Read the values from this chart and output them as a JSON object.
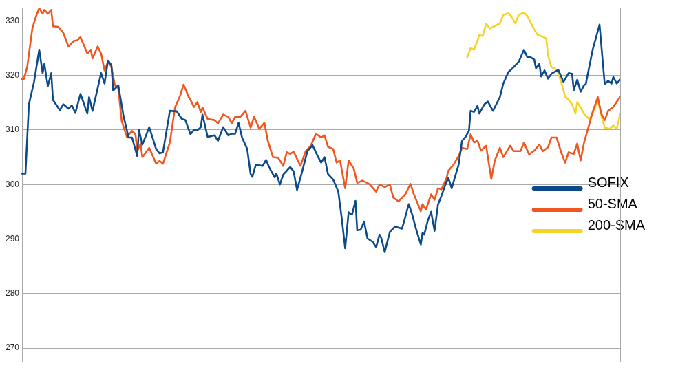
{
  "chart_data": {
    "type": "line",
    "ylim": [
      267.4,
      332.4
    ],
    "yticks": [
      270,
      280,
      290,
      300,
      310,
      320,
      330
    ],
    "tick_labels": "y",
    "grid": "y",
    "legend": "right",
    "marker": "none",
    "line_style": "solid",
    "categories": [
      null,
      null,
      null,
      null,
      null,
      null,
      null,
      null,
      null,
      null,
      null,
      null,
      null,
      null,
      null,
      null,
      null,
      null,
      null,
      null,
      null,
      null,
      null,
      null,
      null,
      null,
      null,
      null,
      null,
      null,
      null,
      null,
      null,
      null,
      null,
      null,
      null,
      null,
      null,
      null,
      null,
      null,
      null,
      null,
      null,
      null,
      null,
      null,
      null,
      null,
      null,
      null,
      null,
      null,
      null,
      null,
      null,
      null,
      null,
      null,
      null,
      null,
      null,
      null,
      null,
      null,
      null,
      null,
      null,
      null,
      null,
      null,
      null,
      null,
      null,
      null,
      null,
      null,
      null,
      null,
      null,
      null,
      null,
      null,
      null,
      null,
      null,
      null,
      null,
      null,
      null,
      null,
      null,
      null,
      null,
      null,
      null,
      null,
      null,
      null,
      null,
      null,
      null,
      null,
      null,
      null,
      null,
      null,
      null,
      null,
      null,
      null,
      null,
      null,
      null,
      null,
      null,
      null,
      null,
      null,
      null,
      null,
      null,
      null,
      null,
      null,
      null,
      null,
      null,
      null,
      null,
      null,
      null,
      null,
      null,
      null,
      null,
      null,
      null,
      null,
      null,
      null,
      null,
      null,
      null,
      null,
      null,
      null,
      null,
      null,
      null,
      null,
      null,
      null,
      null,
      null,
      null,
      null,
      null,
      null,
      null,
      null,
      null,
      null,
      null,
      null,
      null,
      null,
      null,
      null,
      null,
      null,
      null,
      null,
      null,
      null,
      null,
      null,
      null,
      null,
      null,
      null,
      null,
      null,
      null,
      null,
      null,
      null,
      null,
      null,
      null,
      null,
      null,
      null,
      null,
      null,
      null,
      null,
      null,
      null,
      null,
      null,
      null,
      null,
      null,
      null,
      null,
      null,
      null,
      null,
      null,
      null,
      null,
      null,
      null,
      null,
      null,
      null,
      null,
      null,
      null,
      null,
      null,
      null,
      null,
      null,
      null,
      null,
      null,
      null,
      null,
      null,
      null,
      null,
      null,
      null,
      null,
      null,
      null,
      null,
      null,
      null,
      null,
      null,
      null,
      null,
      null,
      null,
      null,
      null,
      null,
      null,
      null,
      null,
      null,
      null,
      null,
      null,
      null,
      null,
      null,
      null,
      null,
      null,
      null,
      null,
      null,
      null,
      null,
      null,
      null,
      null,
      null,
      null,
      null,
      null,
      null,
      null,
      null,
      null,
      null,
      null,
      null,
      null,
      null,
      null,
      null,
      null,
      null,
      null,
      null,
      null,
      null,
      null,
      null,
      null,
      null,
      null,
      null,
      null,
      null,
      null,
      null,
      null,
      null,
      null,
      null,
      null,
      null,
      null,
      null,
      null,
      null,
      null,
      null,
      null,
      null,
      null,
      null,
      null,
      null,
      null,
      null,
      null,
      null,
      null,
      null,
      null,
      null,
      null,
      null,
      null,
      null,
      null,
      null,
      null,
      null,
      null,
      null,
      null,
      null,
      null,
      null,
      null,
      null,
      null,
      null,
      null,
      null
    ],
    "series": [
      {
        "name": "SOFIX",
        "color": "#0d4a8a",
        "values": [
          302,
          null,
          302,
          null,
          314.7,
          null,
          null,
          318.8,
          null,
          null,
          324.7,
          null,
          320.4,
          322.1,
          null,
          318,
          null,
          320.4,
          315.5,
          null,
          null,
          null,
          313.6,
          null,
          314.7,
          null,
          null,
          313.9,
          null,
          314.5,
          null,
          313.1,
          null,
          null,
          316.6,
          null,
          null,
          null,
          313,
          316,
          null,
          313.5,
          null,
          null,
          null,
          null,
          320.4,
          null,
          318.5,
          null,
          322.7,
          null,
          321.9,
          317.2,
          null,
          null,
          318.2,
          null,
          null,
          312.6,
          null,
          null,
          308.6,
          null,
          308.6,
          null,
          null,
          305.2,
          310,
          null,
          307.3,
          null,
          null,
          null,
          310.5,
          null,
          null,
          null,
          306.5,
          null,
          305.7,
          null,
          305.9,
          null,
          null,
          null,
          313.5,
          null,
          null,
          null,
          313.4,
          null,
          null,
          312,
          null,
          311.8,
          null,
          null,
          309.2,
          null,
          310,
          null,
          309.9,
          null,
          310.5,
          312.8,
          null,
          null,
          308.7,
          null,
          null,
          null,
          309,
          null,
          308,
          null,
          null,
          310.5,
          null,
          null,
          309,
          null,
          309.3,
          null,
          309.3,
          null,
          311.3,
          null,
          308.6,
          null,
          null,
          306.5,
          null,
          301.9,
          301.4,
          null,
          303.6,
          null,
          null,
          null,
          303.4,
          null,
          304.5,
          null,
          303,
          null,
          null,
          301.3,
          302,
          null,
          300,
          null,
          301.8,
          null,
          null,
          null,
          303.2,
          null,
          302.4,
          null,
          299,
          null,
          null,
          302.4,
          null,
          null,
          306.1,
          null,
          null,
          307.2,
          null,
          null,
          305.2,
          null,
          304,
          null,
          305,
          null,
          301.9,
          null,
          null,
          300.9,
          null,
          null,
          298.7,
          null,
          293.8,
          null,
          288.3,
          null,
          294.9,
          null,
          294.5,
          null,
          297,
          291.6,
          null,
          291.7,
          null,
          293.2,
          null,
          290.1,
          null,
          null,
          289.5,
          null,
          288.5,
          null,
          290.8,
          290.2,
          null,
          287.6,
          null,
          null,
          291.3,
          null,
          null,
          292.3,
          null,
          null,
          null,
          291.9,
          292.9,
          null,
          null,
          296.4,
          null,
          294.5,
          null,
          292.1,
          null,
          null,
          289,
          291.1,
          290.8,
          null,
          293.3,
          null,
          295,
          null,
          291.5,
          null,
          296.3,
          null,
          297.9,
          null,
          299.7,
          null,
          301.2,
          null,
          299.3,
          null,
          301.5,
          null,
          303.6,
          null,
          308,
          null,
          308.7,
          null,
          309.8,
          313.5,
          null,
          313.3,
          null,
          314.4,
          313,
          null,
          null,
          314.7,
          null,
          315.2,
          null,
          null,
          313.5,
          null,
          null,
          null,
          316,
          null,
          318.5,
          null,
          null,
          320.6,
          null,
          null,
          321.5,
          null,
          null,
          322.5,
          null,
          null,
          324.7,
          null,
          323.3,
          null,
          323.3,
          null,
          322.9,
          321.3,
          null,
          322.1,
          319.8,
          null,
          320.9,
          null,
          319.4,
          null,
          320.3,
          null,
          null,
          null,
          321,
          null,
          null,
          318.8,
          null,
          null,
          320.4,
          null,
          320.3,
          317.3,
          null,
          319.2,
          null,
          317,
          null,
          318.2,
          318.4,
          null,
          null,
          null,
          324.7,
          null,
          null,
          null,
          329.3,
          null,
          null,
          318.4,
          null,
          319,
          null,
          318.5,
          319.7,
          null,
          318.5,
          null,
          319.2
        ]
      },
      {
        "name": "50-SMA",
        "color": "#f0561e",
        "values": [
          319.3,
          319.3,
          null,
          321.5,
          null,
          null,
          328.6,
          null,
          330.7,
          null,
          332.3,
          null,
          331.3,
          332,
          null,
          331.3,
          null,
          332,
          329,
          null,
          null,
          328.9,
          null,
          null,
          327.8,
          null,
          null,
          325.3,
          null,
          null,
          326.3,
          null,
          326.4,
          null,
          327,
          null,
          null,
          null,
          324,
          null,
          324.7,
          323.1,
          null,
          null,
          325.3,
          null,
          324,
          null,
          320.9,
          null,
          322.5,
          null,
          321.6,
          null,
          318.2,
          null,
          317.6,
          null,
          311.6,
          null,
          null,
          308.7,
          null,
          null,
          309.8,
          null,
          309.2,
          306.1,
          null,
          307.5,
          305,
          null,
          null,
          null,
          306.7,
          null,
          null,
          null,
          303.8,
          null,
          304.3,
          null,
          303.8,
          null,
          null,
          null,
          307.7,
          null,
          null,
          314.1,
          null,
          null,
          316.3,
          null,
          318.3,
          null,
          null,
          316,
          315.5,
          null,
          314.2,
          null,
          315.1,
          null,
          313.3,
          314.1,
          null,
          null,
          312,
          null,
          null,
          null,
          311.8,
          null,
          311.2,
          null,
          null,
          312.8,
          null,
          null,
          312.4,
          null,
          311.2,
          null,
          312.4,
          null,
          null,
          312.4,
          null,
          null,
          313.5,
          null,
          null,
          310.4,
          null,
          312.4,
          null,
          null,
          310.2,
          null,
          null,
          311.3,
          null,
          308,
          null,
          null,
          305,
          null,
          null,
          304.9,
          null,
          null,
          303.4,
          null,
          305.9,
          null,
          305.6,
          null,
          306,
          null,
          null,
          null,
          303.4,
          null,
          null,
          306.1,
          null,
          null,
          307.1,
          null,
          null,
          309.3,
          null,
          null,
          308.6,
          null,
          309,
          null,
          306.9,
          null,
          null,
          306.5,
          null,
          304,
          null,
          304.4,
          null,
          null,
          299.3,
          null,
          304.4,
          null,
          null,
          302.9,
          null,
          300.3,
          null,
          null,
          300.7,
          null,
          null,
          null,
          300.1,
          null,
          null,
          null,
          298.7,
          null,
          300,
          null,
          null,
          299.5,
          null,
          null,
          300,
          null,
          297.6,
          null,
          null,
          296.9,
          null,
          null,
          null,
          298.2,
          null,
          null,
          300.1,
          null,
          298.2,
          null,
          null,
          null,
          295.1,
          296.4,
          null,
          295.4,
          null,
          null,
          298.2,
          null,
          297.2,
          null,
          299.3,
          null,
          299.1,
          null,
          null,
          301.2,
          302.5,
          null,
          null,
          303.6,
          null,
          null,
          305.2,
          null,
          306.7,
          null,
          null,
          306.5,
          null,
          309.2,
          null,
          307.7,
          null,
          308,
          null,
          306.2,
          null,
          null,
          307.1,
          null,
          null,
          301,
          null,
          304.3,
          null,
          null,
          306.7,
          null,
          305,
          null,
          null,
          null,
          307.1,
          null,
          306.1,
          null,
          null,
          null,
          306.1,
          null,
          307.7,
          null,
          null,
          305.5,
          null,
          null,
          306.2,
          null,
          null,
          307.3,
          null,
          306.1,
          null,
          null,
          306.8,
          null,
          308.6,
          null,
          null,
          308.6,
          null,
          null,
          305.6,
          null,
          304,
          null,
          305.9,
          null,
          null,
          305.6,
          null,
          307.5,
          null,
          304.4,
          null,
          307.7,
          null,
          null,
          311,
          null,
          313.3,
          null,
          null,
          316,
          null,
          313,
          null,
          311.8,
          null,
          313.5,
          null,
          null,
          314.2,
          null,
          null,
          null,
          316.1
        ]
      },
      {
        "name": "200-SMA",
        "color": "#f5d327",
        "values": [
          null,
          null,
          null,
          null,
          null,
          null,
          null,
          null,
          null,
          null,
          null,
          null,
          null,
          null,
          null,
          null,
          null,
          null,
          null,
          null,
          null,
          null,
          null,
          null,
          null,
          null,
          null,
          null,
          null,
          null,
          null,
          null,
          null,
          null,
          null,
          null,
          null,
          null,
          null,
          null,
          null,
          null,
          null,
          null,
          null,
          null,
          null,
          null,
          null,
          null,
          null,
          null,
          null,
          null,
          null,
          null,
          null,
          null,
          null,
          null,
          null,
          null,
          null,
          null,
          null,
          null,
          null,
          null,
          null,
          null,
          null,
          null,
          null,
          null,
          null,
          null,
          null,
          null,
          null,
          null,
          null,
          null,
          null,
          null,
          null,
          null,
          null,
          null,
          null,
          null,
          null,
          null,
          null,
          null,
          null,
          null,
          null,
          null,
          null,
          null,
          null,
          null,
          null,
          null,
          null,
          null,
          null,
          null,
          null,
          null,
          null,
          null,
          null,
          null,
          null,
          null,
          null,
          null,
          null,
          null,
          null,
          null,
          null,
          null,
          null,
          null,
          null,
          null,
          null,
          null,
          null,
          null,
          null,
          null,
          null,
          null,
          null,
          null,
          null,
          null,
          null,
          null,
          null,
          null,
          null,
          null,
          null,
          null,
          null,
          null,
          null,
          null,
          null,
          null,
          null,
          null,
          null,
          null,
          null,
          null,
          null,
          null,
          null,
          null,
          null,
          null,
          null,
          null,
          null,
          null,
          null,
          null,
          null,
          null,
          null,
          null,
          null,
          null,
          null,
          null,
          null,
          null,
          null,
          null,
          null,
          null,
          null,
          null,
          null,
          null,
          null,
          null,
          null,
          null,
          null,
          null,
          null,
          null,
          null,
          null,
          null,
          null,
          null,
          null,
          null,
          null,
          null,
          null,
          null,
          null,
          null,
          null,
          null,
          null,
          null,
          null,
          null,
          null,
          null,
          null,
          null,
          null,
          null,
          null,
          null,
          null,
          null,
          null,
          null,
          null,
          null,
          null,
          null,
          null,
          null,
          null,
          null,
          null,
          null,
          null,
          null,
          null,
          null,
          null,
          null,
          null,
          null,
          null,
          null,
          null,
          null,
          null,
          null,
          null,
          null,
          null,
          null,
          null,
          null,
          323.3,
          null,
          325,
          null,
          324.7,
          null,
          326.4,
          327.4,
          null,
          327.2,
          null,
          329.5,
          null,
          328.6,
          null,
          328.9,
          null,
          null,
          null,
          329.5,
          null,
          331.1,
          null,
          null,
          331.4,
          null,
          330.7,
          null,
          329.5,
          null,
          331.1,
          null,
          null,
          331.5,
          null,
          330.9,
          null,
          329.6,
          null,
          328.4,
          null,
          327.4,
          null,
          327.2,
          null,
          null,
          326.8,
          323.7,
          null,
          321.5,
          null,
          321.3,
          null,
          320.4,
          null,
          318.4,
          null,
          316.1,
          null,
          315.5,
          null,
          314.7,
          null,
          313,
          315.1,
          null,
          314.1,
          null,
          312.9,
          null,
          null,
          312,
          null,
          313,
          null,
          null,
          315.5,
          null,
          312.6,
          null,
          310.4,
          null,
          null,
          310.2,
          null,
          310.8,
          null,
          310.2,
          null,
          312.9
        ]
      }
    ]
  }
}
